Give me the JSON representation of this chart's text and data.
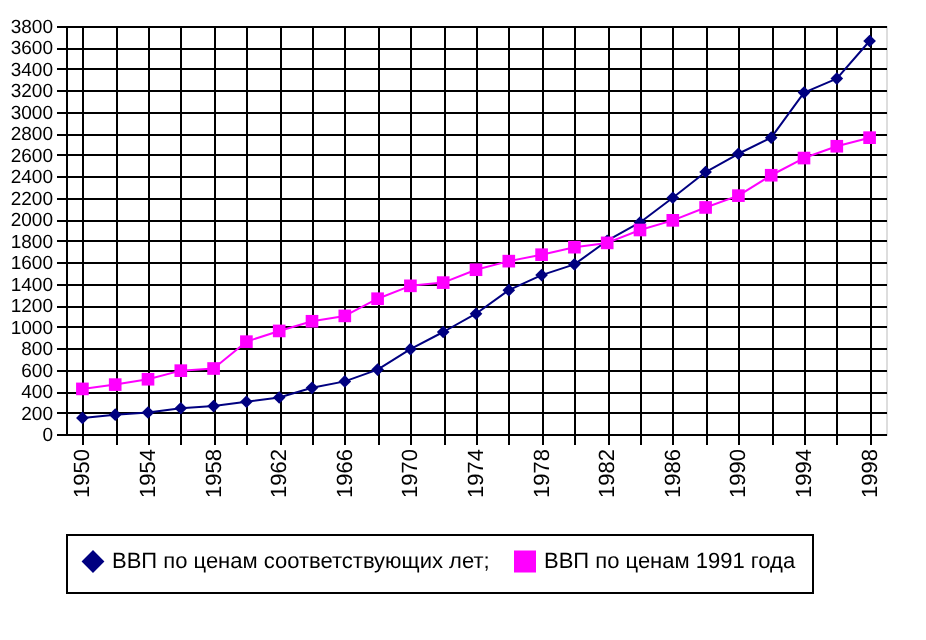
{
  "chart_data": {
    "type": "line",
    "categories": [
      "1950",
      null,
      "1954",
      null,
      "1958",
      null,
      "1962",
      null,
      "1966",
      null,
      "1970",
      null,
      "1974",
      null,
      "1978",
      null,
      "1982",
      null,
      "1986",
      null,
      "1990",
      null,
      "1994",
      null,
      "1998"
    ],
    "series": [
      {
        "name": "ВВП по ценам соответствующих лет;",
        "color": "#000080",
        "marker": "diamond",
        "values": [
          150,
          180,
          200,
          240,
          260,
          300,
          340,
          430,
          490,
          600,
          790,
          950,
          1120,
          1340,
          1480,
          1580,
          1800,
          1970,
          2200,
          2440,
          2610,
          2760,
          3180,
          3310,
          3660
        ]
      },
      {
        "name": "ВВП по ценам 1991 года",
        "color": "#ff00ff",
        "marker": "square",
        "values": [
          420,
          460,
          510,
          590,
          610,
          860,
          960,
          1050,
          1100,
          1260,
          1380,
          1410,
          1530,
          1610,
          1670,
          1740,
          1780,
          1900,
          1990,
          2110,
          2220,
          2410,
          2570,
          2680,
          2760
        ]
      }
    ],
    "ylim": [
      0,
      3800
    ],
    "yticks": [
      0,
      200,
      400,
      600,
      800,
      1000,
      1200,
      1400,
      1600,
      1800,
      2000,
      2200,
      2400,
      2600,
      2800,
      3000,
      3200,
      3400,
      3600,
      3800
    ],
    "grid": true,
    "legend": "bottom",
    "line_style": "solid"
  }
}
